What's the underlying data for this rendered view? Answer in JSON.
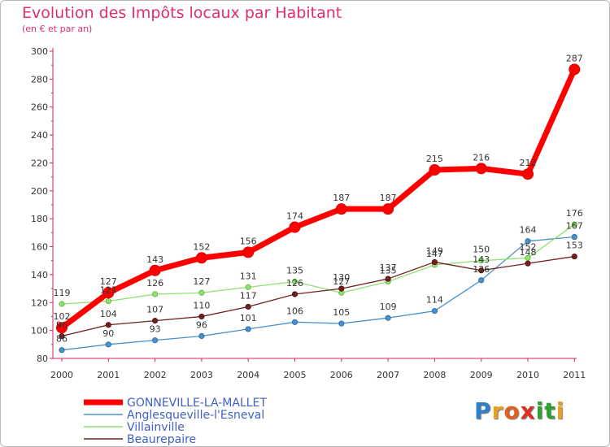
{
  "chart_data": {
    "type": "line",
    "title": "Evolution des Impôts locaux par Habitant",
    "subtitle": "(en € et par an)",
    "xlabel": "",
    "ylabel": "",
    "ylim": [
      80,
      300
    ],
    "yticks": [
      80,
      100,
      120,
      140,
      160,
      180,
      200,
      220,
      240,
      260,
      280,
      300
    ],
    "categories": [
      "2000",
      "2001",
      "2002",
      "2003",
      "2004",
      "2005",
      "2006",
      "2007",
      "2008",
      "2009",
      "2010",
      "2011"
    ],
    "grid": false,
    "legend_position": "bottom-left",
    "series": [
      {
        "name": "GONNEVILLE-LA-MALLET",
        "color": "#ff0000",
        "values": [
          102,
          127,
          143,
          152,
          156,
          174,
          187,
          187,
          215,
          216,
          212,
          287
        ]
      },
      {
        "name": "Anglesqueville-l'Esneval",
        "color": "#4a90c8",
        "values": [
          86,
          90,
          93,
          96,
          101,
          106,
          105,
          109,
          114,
          136,
          164,
          167
        ]
      },
      {
        "name": "Villainville",
        "color": "#90e070",
        "values": [
          119,
          121,
          126,
          127,
          131,
          135,
          127,
          135,
          147,
          150,
          152,
          176
        ]
      },
      {
        "name": "Beaurepaire",
        "color": "#702020",
        "values": [
          96,
          104,
          107,
          110,
          117,
          126,
          130,
          137,
          149,
          143,
          148,
          153
        ]
      }
    ]
  },
  "logo": {
    "letters": [
      "P",
      "r",
      "o",
      "x",
      "i",
      "t",
      "i"
    ],
    "colors": [
      "#2f7fc8",
      "#e8a020",
      "#e06020",
      "#e03020",
      "#30a030",
      "#30a030",
      "#e8a020"
    ]
  }
}
